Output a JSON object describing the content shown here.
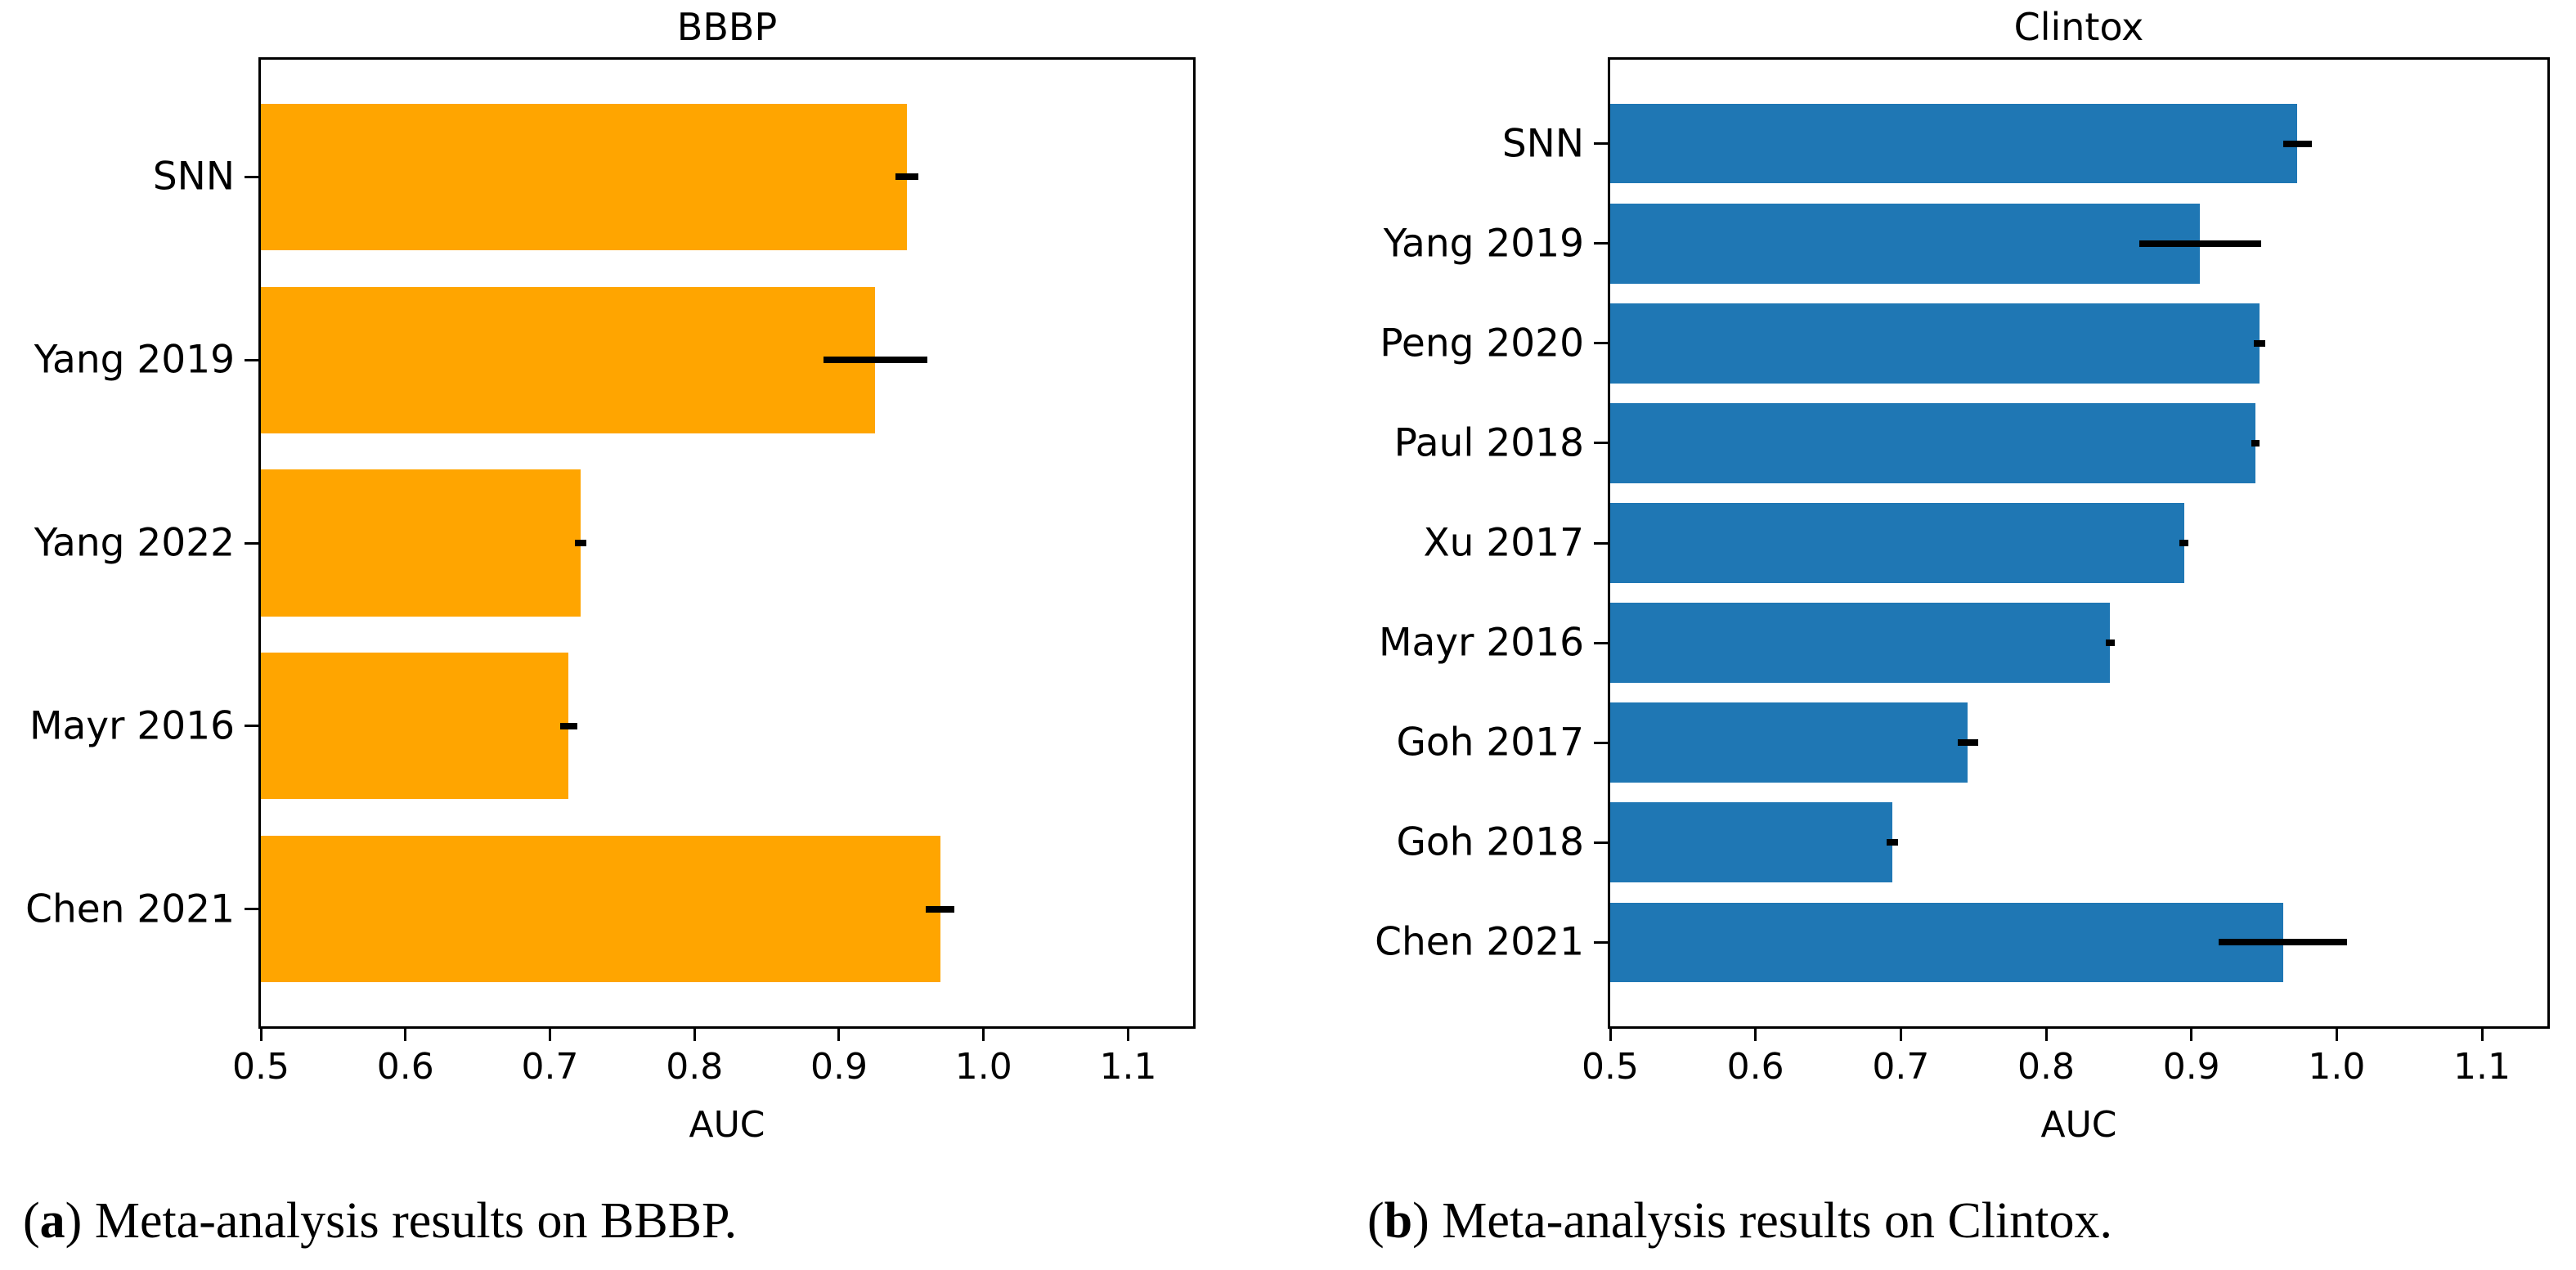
{
  "figure": {
    "captions": [
      {
        "open": "(",
        "letter": "a",
        "close": ") ",
        "text": "Meta-analysis results on BBBP."
      },
      {
        "open": "(",
        "letter": "b",
        "close": ") ",
        "text": "Meta-analysis results on Clintox."
      }
    ]
  },
  "chart_data": [
    {
      "type": "bar",
      "orientation": "horizontal",
      "title": "BBBP",
      "xlabel": "AUC",
      "bar_color": "#FFA500",
      "error_color": "#000000",
      "xlim": [
        0.5,
        1.145
      ],
      "xticks": [
        0.5,
        0.6,
        0.7,
        0.8,
        0.9,
        1.0,
        1.1
      ],
      "grid": false,
      "legend": "none",
      "categories": [
        "SNN",
        "Yang 2019",
        "Yang 2022",
        "Mayr 2016",
        "Chen 2021"
      ],
      "values": [
        0.947,
        0.925,
        0.721,
        0.713,
        0.97
      ],
      "errors": [
        0.008,
        0.036,
        0.004,
        0.006,
        0.01
      ]
    },
    {
      "type": "bar",
      "orientation": "horizontal",
      "title": "Clintox",
      "xlabel": "AUC",
      "bar_color": "#1f77b4",
      "error_color": "#000000",
      "xlim": [
        0.5,
        1.145
      ],
      "xticks": [
        0.5,
        0.6,
        0.7,
        0.8,
        0.9,
        1.0,
        1.1
      ],
      "grid": false,
      "legend": "none",
      "categories": [
        "SNN",
        "Yang 2019",
        "Peng 2020",
        "Paul 2018",
        "Xu 2017",
        "Mayr 2016",
        "Goh 2017",
        "Goh 2018",
        "Chen 2021"
      ],
      "values": [
        0.973,
        0.906,
        0.947,
        0.944,
        0.895,
        0.844,
        0.746,
        0.694,
        0.963
      ],
      "errors": [
        0.01,
        0.042,
        0.004,
        0.003,
        0.003,
        0.003,
        0.007,
        0.004,
        0.044
      ]
    }
  ]
}
